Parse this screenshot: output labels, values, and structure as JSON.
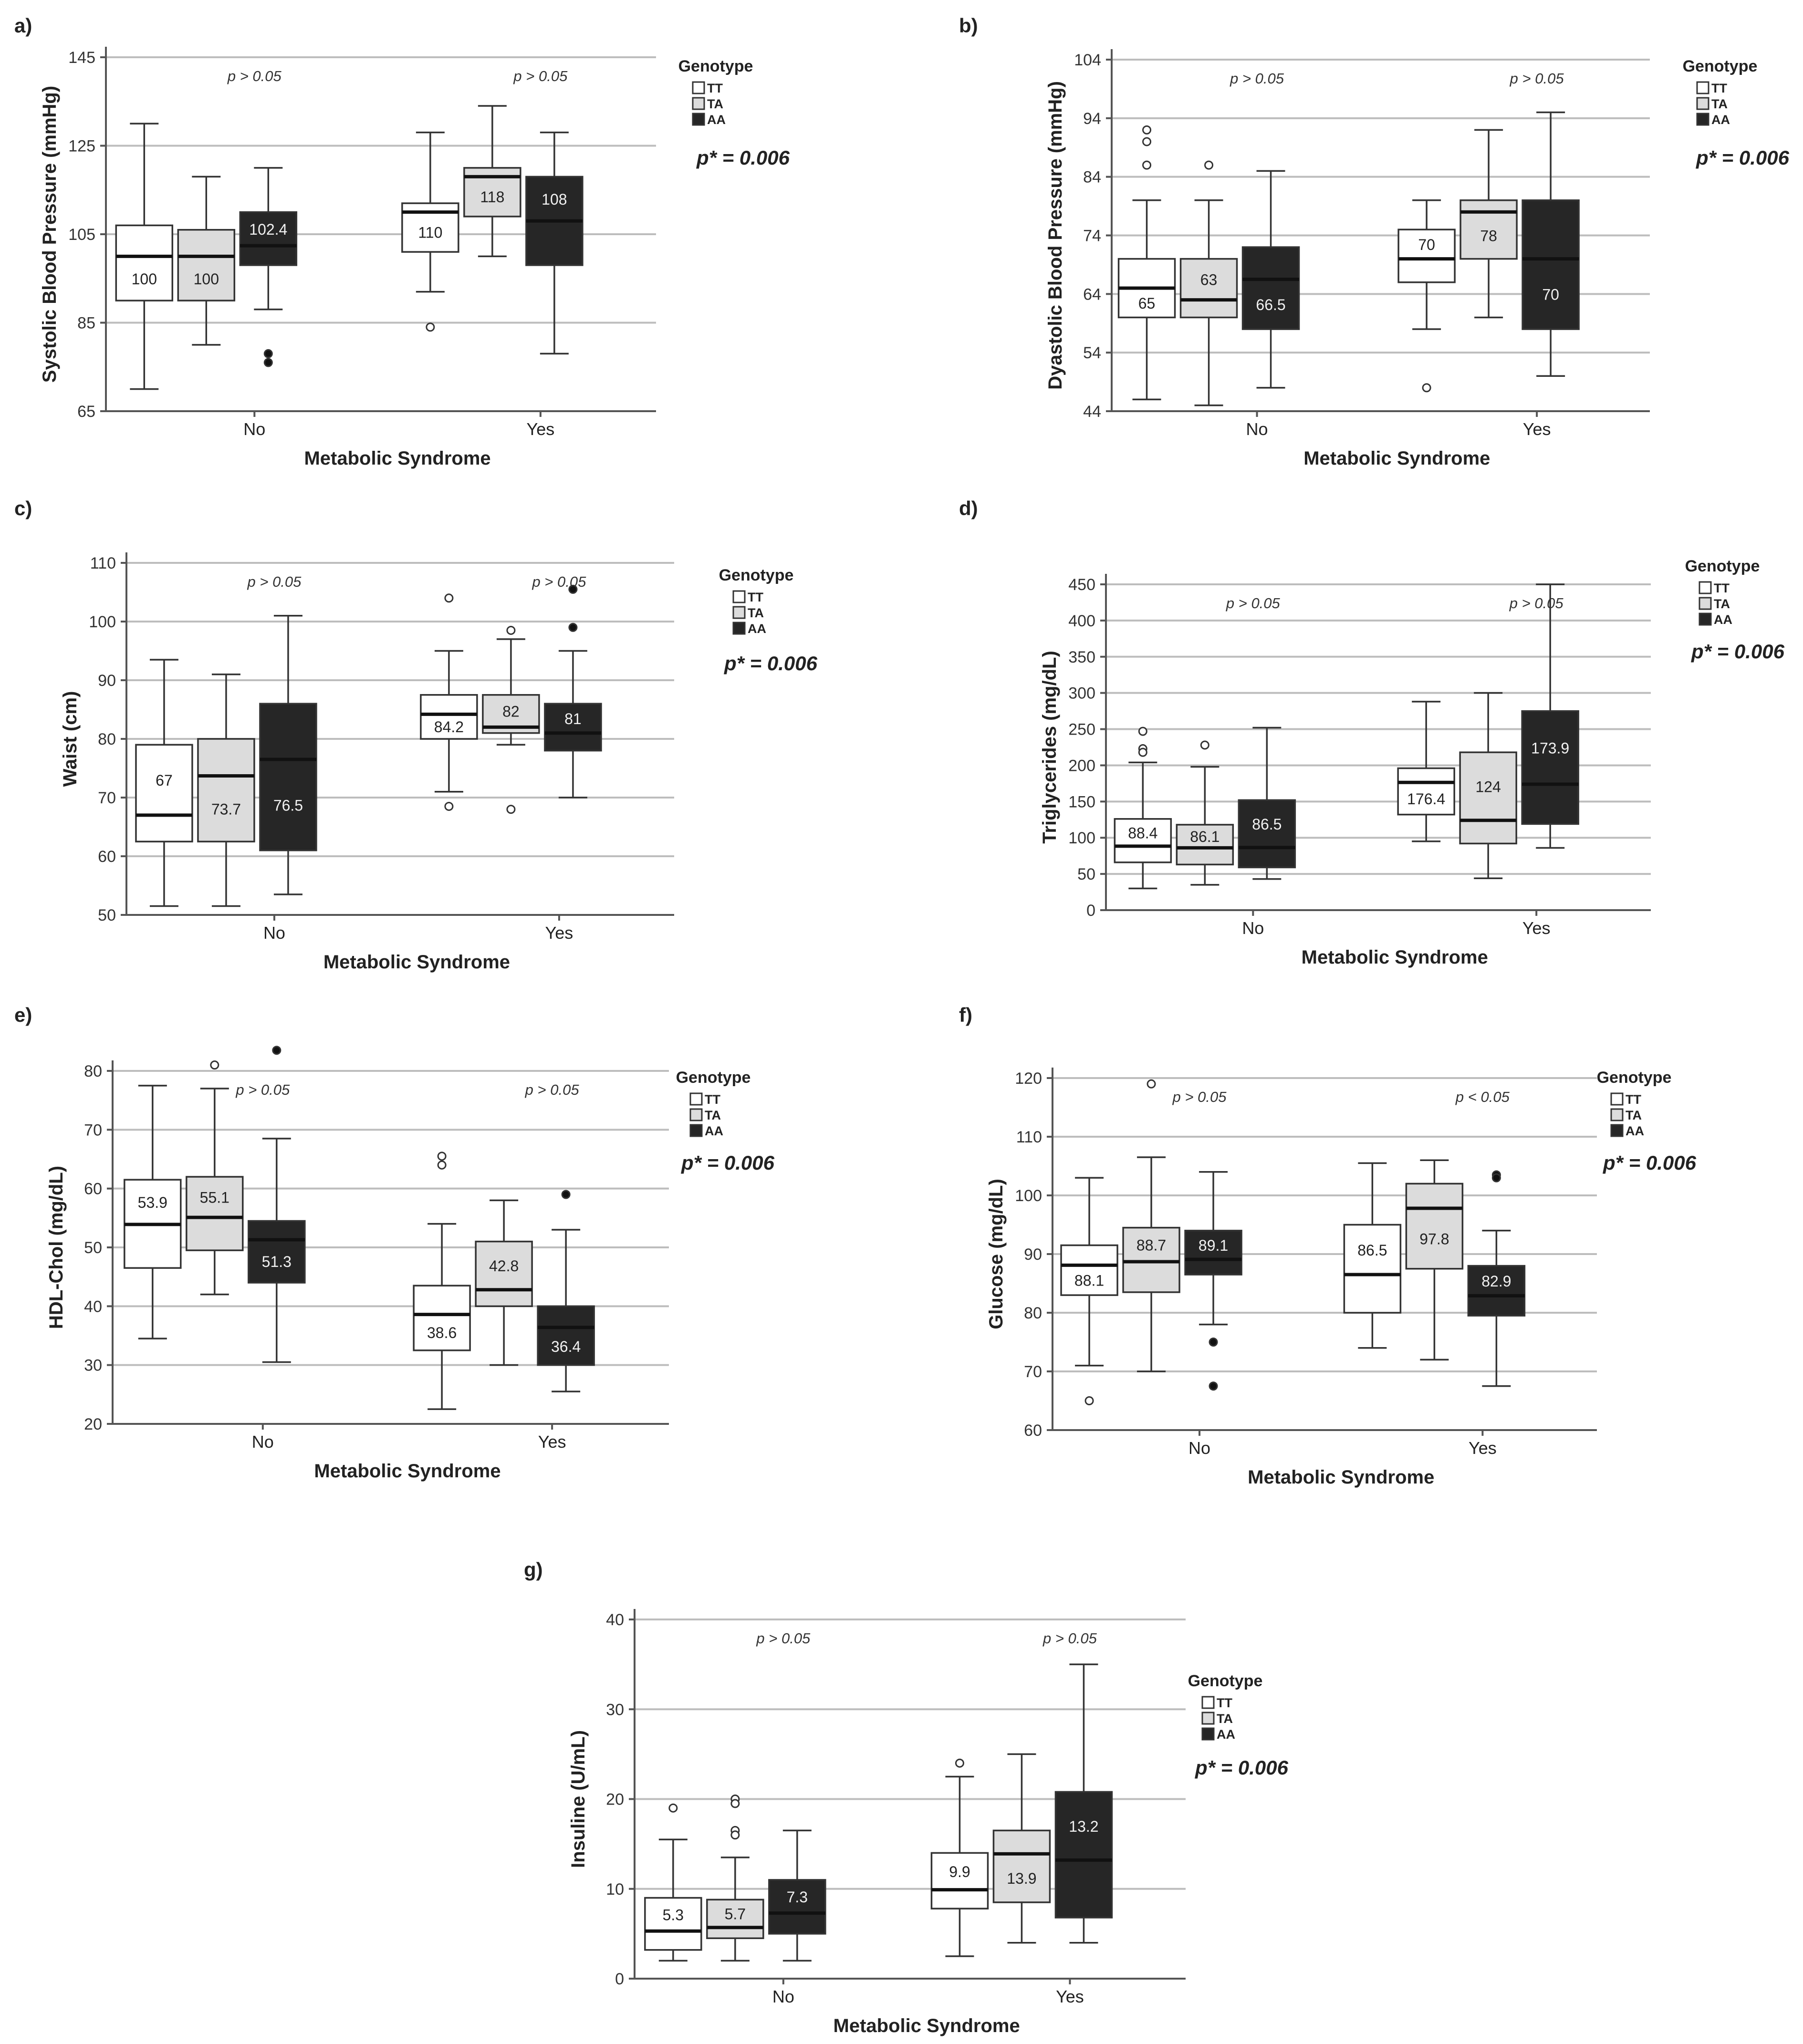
{
  "figure": {
    "colors": {
      "TT": "#ffffff",
      "TA": "#dcdcdc",
      "AA": "#262626",
      "grid": "#bdbdbd",
      "axis": "#555555"
    }
  },
  "chart_data": [
    {
      "type": "boxplot",
      "panel": "a)",
      "ylabel": "Systolic Blood Pressure (mmHg)",
      "xlabel": "Metabolic Syndrome",
      "ylim": [
        65,
        145
      ],
      "yticks": [
        65,
        85,
        105,
        125,
        145
      ],
      "categories": [
        "No",
        "Yes"
      ],
      "legend": {
        "title": "Genotype",
        "items": [
          "TT",
          "TA",
          "AA"
        ]
      },
      "group_p": [
        "p > 0.05",
        "p > 0.05"
      ],
      "overall_p": "p* = 0.006",
      "series": [
        {
          "name": "TT",
          "boxes": [
            {
              "min": 70,
              "q1": 90,
              "median": 100,
              "q3": 107,
              "max": 130,
              "label": "100",
              "outliers": []
            },
            {
              "min": 92,
              "q1": 101,
              "median": 110,
              "q3": 112,
              "max": 128,
              "label": "110",
              "outliers": [
                84
              ]
            }
          ]
        },
        {
          "name": "TA",
          "boxes": [
            {
              "min": 80,
              "q1": 90,
              "median": 100,
              "q3": 106,
              "max": 118,
              "label": "100",
              "outliers": []
            },
            {
              "min": 100,
              "q1": 109,
              "median": 118,
              "q3": 120,
              "max": 134,
              "label": "118",
              "outliers": []
            }
          ]
        },
        {
          "name": "AA",
          "boxes": [
            {
              "min": 88,
              "q1": 98,
              "median": 102.4,
              "q3": 110,
              "max": 120,
              "label": "102.4",
              "outliers": [
                78,
                76
              ]
            },
            {
              "min": 78,
              "q1": 98,
              "median": 108,
              "q3": 118,
              "max": 128,
              "label": "108",
              "outliers": []
            }
          ]
        }
      ]
    },
    {
      "type": "boxplot",
      "panel": "b)",
      "ylabel": "Dyastolic Blood Pressure (mmHg)",
      "xlabel": "Metabolic Syndrome",
      "ylim": [
        44,
        104
      ],
      "yticks": [
        44,
        54,
        64,
        74,
        84,
        94,
        104
      ],
      "categories": [
        "No",
        "Yes"
      ],
      "legend": {
        "title": "Genotype",
        "items": [
          "TT",
          "TA",
          "AA"
        ]
      },
      "group_p": [
        "p > 0.05",
        "p > 0.05"
      ],
      "overall_p": "p* = 0.006",
      "series": [
        {
          "name": "TT",
          "boxes": [
            {
              "min": 46,
              "q1": 60,
              "median": 65,
              "q3": 70,
              "max": 80,
              "label": "65",
              "outliers": [
                92,
                90,
                86
              ]
            },
            {
              "min": 58,
              "q1": 66,
              "median": 70,
              "q3": 75,
              "max": 80,
              "label": "70",
              "outliers": [
                48
              ]
            }
          ]
        },
        {
          "name": "TA",
          "boxes": [
            {
              "min": 45,
              "q1": 60,
              "median": 63,
              "q3": 70,
              "max": 80,
              "label": "63",
              "outliers": [
                86
              ]
            },
            {
              "min": 60,
              "q1": 70,
              "median": 78,
              "q3": 80,
              "max": 92,
              "label": "78",
              "outliers": []
            }
          ]
        },
        {
          "name": "AA",
          "boxes": [
            {
              "min": 48,
              "q1": 58,
              "median": 66.5,
              "q3": 72,
              "max": 85,
              "label": "66.5",
              "outliers": []
            },
            {
              "min": 50,
              "q1": 58,
              "median": 70,
              "q3": 80,
              "max": 95,
              "label": "70",
              "outliers": []
            }
          ]
        }
      ]
    },
    {
      "type": "boxplot",
      "panel": "c)",
      "ylabel": "Waist (cm)",
      "xlabel": "Metabolic Syndrome",
      "ylim": [
        50,
        110
      ],
      "yticks": [
        50,
        60,
        70,
        80,
        90,
        100,
        110
      ],
      "categories": [
        "No",
        "Yes"
      ],
      "legend": {
        "title": "Genotype",
        "items": [
          "TT",
          "TA",
          "AA"
        ]
      },
      "group_p": [
        "p > 0.05",
        "p > 0.05"
      ],
      "overall_p": "p* = 0.006",
      "series": [
        {
          "name": "TT",
          "boxes": [
            {
              "min": 51.5,
              "q1": 62.5,
              "median": 67,
              "q3": 79,
              "max": 93.5,
              "label": "67",
              "outliers": []
            },
            {
              "min": 71,
              "q1": 80,
              "median": 84.2,
              "q3": 87.5,
              "max": 95,
              "label": "84.2",
              "outliers": [
                104,
                68.5
              ]
            }
          ]
        },
        {
          "name": "TA",
          "boxes": [
            {
              "min": 51.5,
              "q1": 62.5,
              "median": 73.7,
              "q3": 80,
              "max": 91,
              "label": "73.7",
              "outliers": []
            },
            {
              "min": 79,
              "q1": 81,
              "median": 82,
              "q3": 87.5,
              "max": 97,
              "label": "82",
              "outliers": [
                98.5,
                68
              ]
            }
          ]
        },
        {
          "name": "AA",
          "boxes": [
            {
              "min": 53.5,
              "q1": 61,
              "median": 76.5,
              "q3": 86,
              "max": 101,
              "label": "76.5",
              "outliers": []
            },
            {
              "min": 70,
              "q1": 78,
              "median": 81,
              "q3": 86,
              "max": 95,
              "label": "81",
              "outliers": [
                105.5,
                99
              ]
            }
          ]
        }
      ]
    },
    {
      "type": "boxplot",
      "panel": "d)",
      "ylabel": "Triglycerides (mg/dL)",
      "xlabel": "Metabolic Syndrome",
      "ylim": [
        0,
        450
      ],
      "yticks": [
        0,
        50,
        100,
        150,
        200,
        250,
        300,
        350,
        400,
        450
      ],
      "categories": [
        "No",
        "Yes"
      ],
      "legend": {
        "title": "Genotype",
        "items": [
          "TT",
          "TA",
          "AA"
        ]
      },
      "group_p": [
        "p > 0.05",
        "p > 0.05"
      ],
      "overall_p": "p* = 0.006",
      "series": [
        {
          "name": "TT",
          "boxes": [
            {
              "min": 30,
              "q1": 66,
              "median": 88.4,
              "q3": 126,
              "max": 204,
              "label": "88.4",
              "outliers": [
                247,
                223,
                218
              ]
            },
            {
              "min": 95,
              "q1": 132,
              "median": 176.4,
              "q3": 196,
              "max": 288,
              "label": "176.4",
              "outliers": []
            }
          ]
        },
        {
          "name": "TA",
          "boxes": [
            {
              "min": 35,
              "q1": 63,
              "median": 86.1,
              "q3": 118,
              "max": 198,
              "label": "86.1",
              "outliers": [
                228
              ]
            },
            {
              "min": 44,
              "q1": 92,
              "median": 124,
              "q3": 218,
              "max": 300,
              "label": "124",
              "outliers": []
            }
          ]
        },
        {
          "name": "AA",
          "boxes": [
            {
              "min": 43,
              "q1": 59,
              "median": 86.5,
              "q3": 152,
              "max": 252,
              "label": "86.5",
              "outliers": []
            },
            {
              "min": 86,
              "q1": 119,
              "median": 173.9,
              "q3": 275,
              "max": 450,
              "label": "173.9",
              "outliers": []
            }
          ]
        }
      ]
    },
    {
      "type": "boxplot",
      "panel": "e)",
      "ylabel": "HDL-Chol (mg/dL)",
      "xlabel": "Metabolic Syndrome",
      "ylim": [
        20,
        80
      ],
      "yticks": [
        20,
        30,
        40,
        50,
        60,
        70,
        80
      ],
      "categories": [
        "No",
        "Yes"
      ],
      "legend": {
        "title": "Genotype",
        "items": [
          "TT",
          "TA",
          "AA"
        ]
      },
      "group_p": [
        "p > 0.05",
        "p > 0.05"
      ],
      "overall_p": "p* = 0.006",
      "series": [
        {
          "name": "TT",
          "boxes": [
            {
              "min": 34.5,
              "q1": 46.5,
              "median": 53.9,
              "q3": 61.5,
              "max": 77.5,
              "label": "53.9",
              "outliers": []
            },
            {
              "min": 22.5,
              "q1": 32.5,
              "median": 38.6,
              "q3": 43.5,
              "max": 54,
              "label": "38.6",
              "outliers": [
                65.5,
                64
              ]
            }
          ]
        },
        {
          "name": "TA",
          "boxes": [
            {
              "min": 42,
              "q1": 49.5,
              "median": 55.1,
              "q3": 62,
              "max": 77,
              "label": "55.1",
              "outliers": [
                81
              ]
            },
            {
              "min": 30,
              "q1": 40,
              "median": 42.8,
              "q3": 51,
              "max": 58,
              "label": "42.8",
              "outliers": []
            }
          ]
        },
        {
          "name": "AA",
          "boxes": [
            {
              "min": 30.5,
              "q1": 44,
              "median": 51.3,
              "q3": 54.5,
              "max": 68.5,
              "label": "51.3",
              "outliers": [
                83.5
              ]
            },
            {
              "min": 25.5,
              "q1": 30,
              "median": 36.4,
              "q3": 40,
              "max": 53,
              "label": "36.4",
              "outliers": [
                59
              ]
            }
          ]
        }
      ]
    },
    {
      "type": "boxplot",
      "panel": "f)",
      "ylabel": "Glucose (mg/dL)",
      "xlabel": "Metabolic Syndrome",
      "ylim": [
        60,
        120
      ],
      "yticks": [
        60,
        70,
        80,
        90,
        100,
        110,
        120
      ],
      "categories": [
        "No",
        "Yes"
      ],
      "legend": {
        "title": "Genotype",
        "items": [
          "TT",
          "TA",
          "AA"
        ]
      },
      "group_p": [
        "p > 0.05",
        "p < 0.05"
      ],
      "overall_p": "p* = 0.006",
      "series": [
        {
          "name": "TT",
          "boxes": [
            {
              "min": 71,
              "q1": 83,
              "median": 88.1,
              "q3": 91.5,
              "max": 103,
              "label": "88.1",
              "outliers": [
                65
              ]
            },
            {
              "min": 74,
              "q1": 80,
              "median": 86.5,
              "q3": 95,
              "max": 105.5,
              "label": "86.5",
              "outliers": []
            }
          ]
        },
        {
          "name": "TA",
          "boxes": [
            {
              "min": 70,
              "q1": 83.5,
              "median": 88.7,
              "q3": 94.5,
              "max": 106.5,
              "label": "88.7",
              "outliers": [
                119
              ]
            },
            {
              "min": 72,
              "q1": 87.5,
              "median": 97.8,
              "q3": 102,
              "max": 106,
              "label": "97.8",
              "outliers": []
            }
          ]
        },
        {
          "name": "AA",
          "boxes": [
            {
              "min": 78,
              "q1": 86.5,
              "median": 89.1,
              "q3": 94,
              "max": 104,
              "label": "89.1",
              "outliers": [
                75,
                67.5
              ]
            },
            {
              "min": 67.5,
              "q1": 79.5,
              "median": 82.9,
              "q3": 88,
              "max": 94,
              "label": "82.9",
              "outliers": [
                103.5,
                103
              ]
            }
          ]
        }
      ]
    },
    {
      "type": "boxplot",
      "panel": "g)",
      "ylabel": "Insuline (U/mL)",
      "xlabel": "Metabolic Syndrome",
      "ylim": [
        0,
        40
      ],
      "yticks": [
        0,
        10,
        20,
        30,
        40
      ],
      "categories": [
        "No",
        "Yes"
      ],
      "legend": {
        "title": "Genotype",
        "items": [
          "TT",
          "TA",
          "AA"
        ]
      },
      "group_p": [
        "p > 0.05",
        "p > 0.05"
      ],
      "overall_p": "p* = 0.006",
      "series": [
        {
          "name": "TT",
          "boxes": [
            {
              "min": 2,
              "q1": 3.2,
              "median": 5.3,
              "q3": 9,
              "max": 15.5,
              "label": "5.3",
              "outliers": [
                19
              ]
            },
            {
              "min": 2.5,
              "q1": 7.8,
              "median": 9.9,
              "q3": 14,
              "max": 22.5,
              "label": "9.9",
              "outliers": [
                24
              ]
            }
          ]
        },
        {
          "name": "TA",
          "boxes": [
            {
              "min": 2,
              "q1": 4.5,
              "median": 5.7,
              "q3": 8.8,
              "max": 13.5,
              "label": "5.7",
              "outliers": [
                20,
                19.5,
                16.5,
                16
              ]
            },
            {
              "min": 4,
              "q1": 8.5,
              "median": 13.9,
              "q3": 16.5,
              "max": 25,
              "label": "13.9",
              "outliers": []
            }
          ]
        },
        {
          "name": "AA",
          "boxes": [
            {
              "min": 2,
              "q1": 5,
              "median": 7.3,
              "q3": 11,
              "max": 16.5,
              "label": "7.3",
              "outliers": []
            },
            {
              "min": 4,
              "q1": 6.8,
              "median": 13.2,
              "q3": 20.8,
              "max": 35,
              "label": "13.2",
              "outliers": []
            }
          ]
        }
      ]
    }
  ]
}
